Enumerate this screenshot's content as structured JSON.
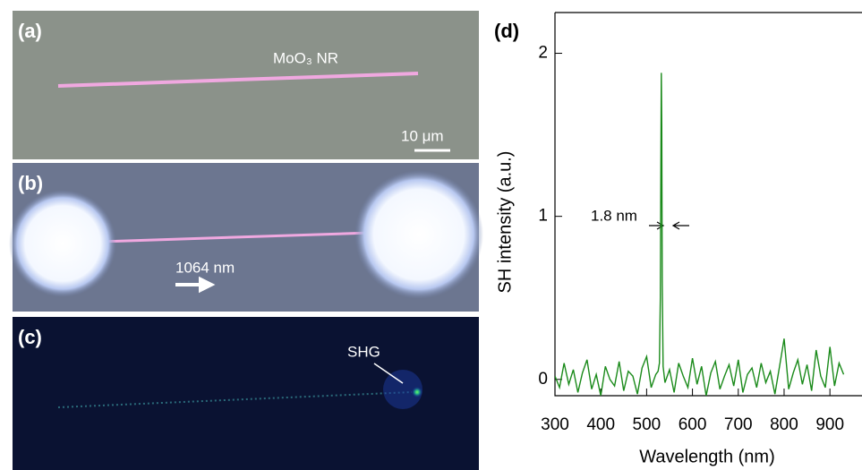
{
  "panels": {
    "a": {
      "label": "(a)",
      "name": "MoO₃ NR",
      "scale": "10 μm"
    },
    "b": {
      "label": "(b)",
      "laser": "1064 nm"
    },
    "c": {
      "label": "(c)",
      "signal": "SHG"
    }
  },
  "chart_data": {
    "type": "line",
    "panel_label": "(d)",
    "x_label": "Wavelength (nm)",
    "y_label": "SH intensity (a.u.)",
    "annotation": "1.8 nm",
    "x": [
      300,
      310,
      320,
      330,
      340,
      350,
      360,
      370,
      380,
      390,
      400,
      410,
      420,
      430,
      440,
      450,
      460,
      470,
      480,
      490,
      500,
      510,
      520,
      525,
      528,
      530,
      531,
      532,
      533,
      534,
      536,
      540,
      550,
      560,
      570,
      580,
      590,
      600,
      610,
      620,
      630,
      640,
      650,
      660,
      670,
      680,
      690,
      700,
      710,
      720,
      730,
      740,
      750,
      760,
      770,
      780,
      790,
      800,
      810,
      820,
      830,
      840,
      850,
      860,
      870,
      880,
      890,
      900,
      910,
      920,
      930
    ],
    "series": [
      {
        "color": "#1a8a1a",
        "values": [
          0.02,
          -0.05,
          0.1,
          -0.03,
          0.06,
          -0.08,
          0.04,
          0.12,
          -0.06,
          0.03,
          -0.1,
          0.08,
          0.0,
          -0.04,
          0.11,
          -0.07,
          0.05,
          0.02,
          -0.09,
          0.07,
          0.14,
          -0.05,
          0.03,
          0.05,
          0.1,
          0.5,
          1.3,
          1.88,
          1.55,
          0.6,
          0.08,
          -0.02,
          0.06,
          -0.08,
          0.1,
          0.02,
          -0.05,
          0.13,
          -0.03,
          0.08,
          -0.1,
          0.04,
          0.11,
          -0.06,
          0.02,
          0.09,
          -0.04,
          0.12,
          -0.08,
          0.03,
          0.07,
          -0.05,
          0.1,
          -0.02,
          0.05,
          -0.09,
          0.08,
          0.25,
          -0.06,
          0.04,
          0.12,
          -0.03,
          0.09,
          -0.07,
          0.18,
          0.02,
          -0.05,
          0.2,
          -0.04,
          0.1,
          0.03
        ]
      }
    ],
    "xlim": [
      300,
      970
    ],
    "xticks": [
      300,
      400,
      500,
      600,
      700,
      800,
      900
    ],
    "ylim": [
      -0.1,
      2.25
    ],
    "yticks": [
      0,
      1,
      2
    ]
  }
}
